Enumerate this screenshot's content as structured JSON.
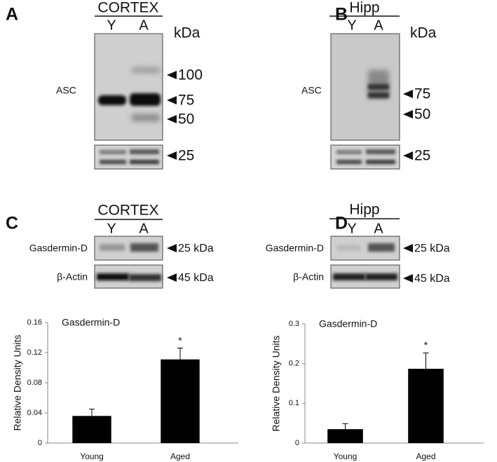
{
  "blots": [
    {
      "letter": "A",
      "region": "CORTEX",
      "lanes": [
        "Y",
        "A"
      ],
      "units": "kDa",
      "protein": "ASC",
      "markers": [
        "100",
        "75",
        "50",
        "25"
      ]
    },
    {
      "letter": "B",
      "region": "Hipp",
      "lanes": [
        "Y",
        "A"
      ],
      "units": "kDa",
      "protein": "ASC",
      "markers": [
        "75",
        "50",
        "25"
      ]
    },
    {
      "letter": "C",
      "region": "CORTEX",
      "lanes": [
        "Y",
        "A"
      ],
      "proteins": [
        "Gasdermin-D",
        "β-Actin"
      ],
      "markers": [
        "25 kDa",
        "45 kDa"
      ]
    },
    {
      "letter": "D",
      "region": "Hipp",
      "lanes": [
        "Y",
        "A"
      ],
      "proteins": [
        "Gasdermin-D",
        "β-Actin"
      ],
      "markers": [
        "25 kDa",
        "45 kDa"
      ]
    }
  ],
  "chart_data": [
    {
      "type": "bar",
      "title": "Gasdermin-D",
      "y_label": "Relative Density Units",
      "categories": [
        "Young",
        "Aged"
      ],
      "values": [
        0.036,
        0.111
      ],
      "errors": [
        0.009,
        0.015
      ],
      "annotation": "*",
      "color": "#000000",
      "ylim": [
        0,
        0.16
      ],
      "yticks": [
        0,
        0.04,
        0.08,
        0.12,
        0.16
      ]
    },
    {
      "type": "bar",
      "title": "Gasdermin-D",
      "y_label": "Relative Density Units",
      "categories": [
        "Young",
        "Aged"
      ],
      "values": [
        0.035,
        0.187
      ],
      "errors": [
        0.014,
        0.04
      ],
      "annotation": "*",
      "color": "#000000",
      "ylim": [
        0,
        0.3
      ],
      "yticks": [
        0,
        0.1,
        0.2,
        0.3
      ]
    }
  ]
}
